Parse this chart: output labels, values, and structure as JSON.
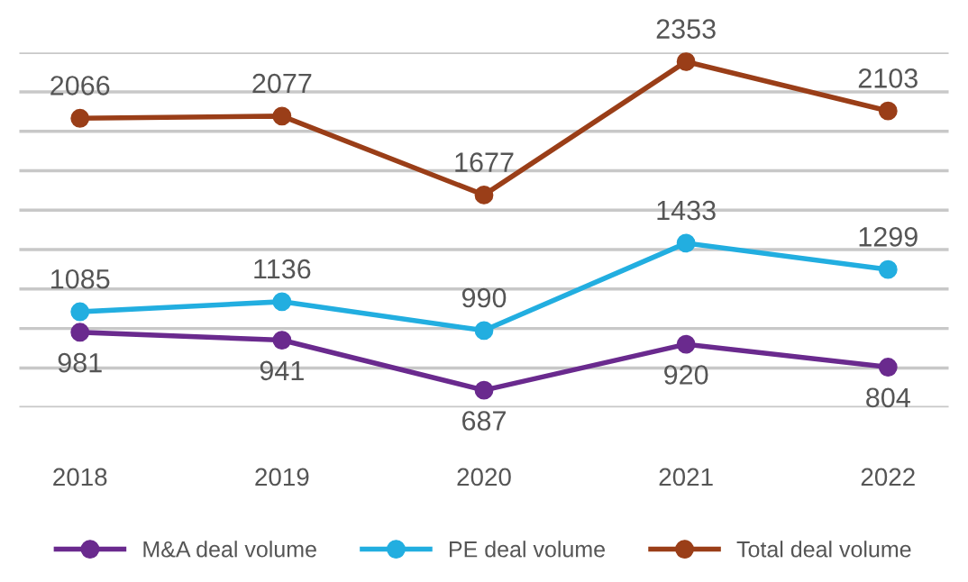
{
  "chart_data": {
    "type": "line",
    "categories": [
      "2018",
      "2019",
      "2020",
      "2021",
      "2022"
    ],
    "series": [
      {
        "name": "M&A deal volume",
        "color": "#6a2a8e",
        "values": [
          981,
          941,
          687,
          920,
          804
        ]
      },
      {
        "name": "PE deal volume",
        "color": "#22aee0",
        "values": [
          1085,
          1136,
          990,
          1433,
          1299
        ]
      },
      {
        "name": "Total deal volume",
        "color": "#9a3e18",
        "values": [
          2066,
          2077,
          1677,
          2353,
          2103
        ]
      }
    ],
    "ylim": [
      600,
      2400
    ],
    "yticks": [
      {
        "value": 600,
        "label": null
      },
      {
        "value": 800,
        "label": null
      },
      {
        "value": 1000,
        "label": null
      },
      {
        "value": 1200,
        "label": null
      },
      {
        "value": 1400,
        "label": null
      },
      {
        "value": 1600,
        "label": null
      },
      {
        "value": 1800,
        "label": null
      },
      {
        "value": 2000,
        "label": null
      },
      {
        "value": 2200,
        "label": null
      },
      {
        "value": 2400,
        "label": null
      }
    ],
    "tick_labels": "x",
    "grid": "y",
    "legend": "bottom",
    "marker": "circle",
    "line_style": "solid",
    "data_labels": true
  }
}
